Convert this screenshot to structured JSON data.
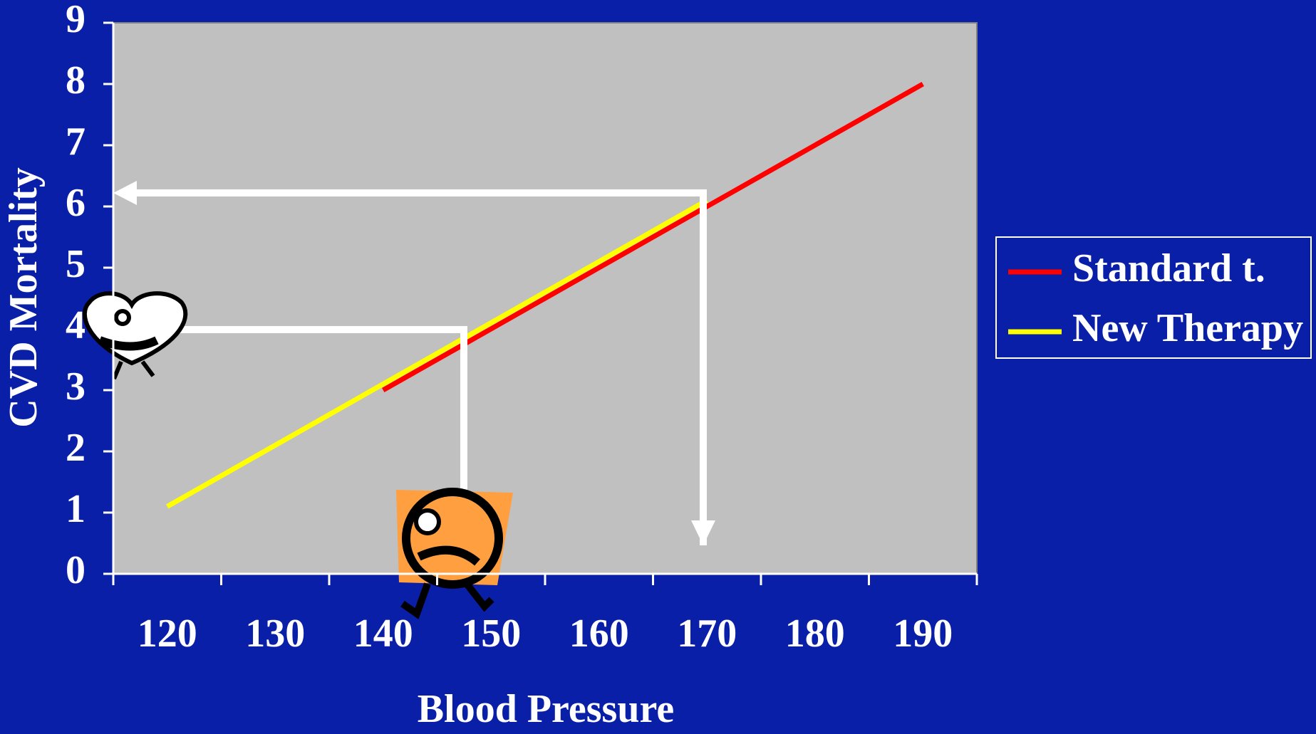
{
  "chart_data": {
    "type": "line",
    "categories": [
      "120",
      "130",
      "140",
      "150",
      "160",
      "170",
      "180",
      "190"
    ],
    "series": [
      {
        "name": "Standard t.",
        "color": "#ff0000",
        "values": [
          null,
          null,
          3,
          4,
          5,
          6,
          7,
          8
        ]
      },
      {
        "name": "New Therapy",
        "color": "#ffff00",
        "values": [
          1.1,
          2.1,
          3.1,
          4.1,
          5.1,
          6.1,
          null,
          null
        ]
      }
    ],
    "x_label": "Blood Pressure",
    "y_label": "CVD Mortality",
    "ylim": [
      0,
      9
    ],
    "yticks": [
      0,
      1,
      2,
      3,
      4,
      5,
      6,
      7,
      8,
      9
    ],
    "grid": false,
    "legend": "right"
  }
}
